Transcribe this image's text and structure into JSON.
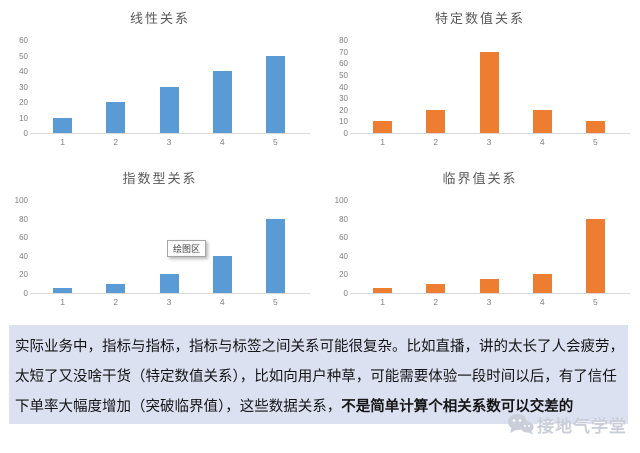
{
  "chart_data": [
    {
      "type": "bar",
      "title": "线性关系",
      "categories": [
        "1",
        "2",
        "3",
        "4",
        "5"
      ],
      "values": [
        10,
        20,
        30,
        40,
        50
      ],
      "xlabel": "",
      "ylabel": "",
      "ylim": [
        0,
        60
      ],
      "ytick_step": 10,
      "bar_color": "#5B9BD5",
      "grid": false,
      "legend": false
    },
    {
      "type": "bar",
      "title": "特定数值关系",
      "categories": [
        "1",
        "2",
        "3",
        "4",
        "5"
      ],
      "values": [
        10,
        20,
        70,
        20,
        10
      ],
      "xlabel": "",
      "ylabel": "",
      "ylim": [
        0,
        80
      ],
      "ytick_step": 10,
      "bar_color": "#ED7D31",
      "grid": false,
      "legend": false
    },
    {
      "type": "bar",
      "title": "指数型关系",
      "categories": [
        "1",
        "2",
        "3",
        "4",
        "5"
      ],
      "values": [
        5,
        10,
        20,
        40,
        80
      ],
      "xlabel": "",
      "ylabel": "",
      "ylim": [
        0,
        100
      ],
      "ytick_step": 20,
      "bar_color": "#5B9BD5",
      "grid": false,
      "legend": false,
      "tooltip": "绘图区"
    },
    {
      "type": "bar",
      "title": "临界值关系",
      "categories": [
        "1",
        "2",
        "3",
        "4",
        "5"
      ],
      "values": [
        5,
        10,
        15,
        20,
        80
      ],
      "xlabel": "",
      "ylabel": "",
      "ylim": [
        0,
        100
      ],
      "ytick_step": 20,
      "bar_color": "#ED7D31",
      "grid": false,
      "legend": false
    }
  ],
  "tooltip": {
    "label": "绘图区"
  },
  "note": {
    "background": "#DBE1F1",
    "line1": "实际业务中，指标与指标，指标与标签之间关系可能很复杂。比如直播，讲的太长了人会疲劳，",
    "line2": "太短了又没啥干货（特定数值关系），比如向用户种草，可能需要体验一段时间以后，有了信任",
    "line3_normal": "下单率大幅度增加（突破临界值），这些数据关系，",
    "line3_bold": "不是简单计算个相关系数可以交差的"
  },
  "watermark": {
    "icon": "wechat-icon",
    "label": "接地气学堂",
    "color": "#C9CED9"
  },
  "colors": {
    "chart_title": "#595959",
    "axis_label": "#7F7F7F",
    "axis_line": "#D9D9D9",
    "series_blue": "#5B9BD5",
    "series_orange": "#ED7D31"
  }
}
